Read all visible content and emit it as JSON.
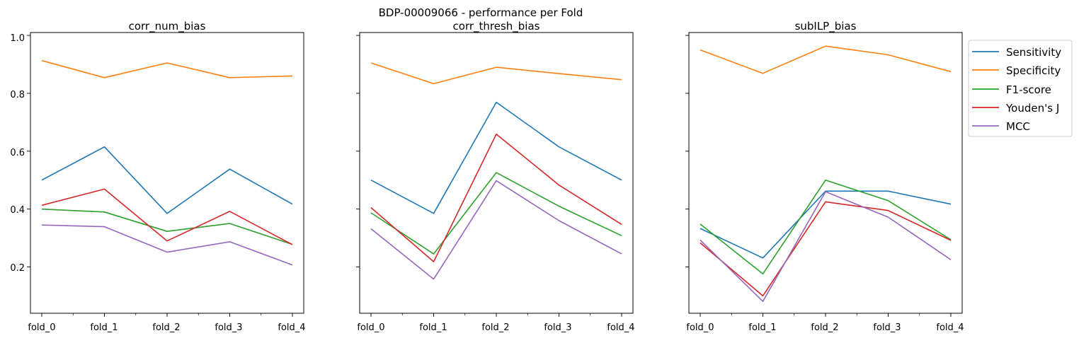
{
  "suptitle": "BDP-00009066 - performance per Fold",
  "colors": {
    "Sensitivity": "#1f77b4",
    "Specificity": "#ff7f0e",
    "F1-score": "#2ca02c",
    "Youden's J": "#d62728",
    "MCC": "#9467bd"
  },
  "legend": {
    "placement": "outside-right",
    "entries": [
      "Sensitivity",
      "Specificity",
      "F1-score",
      "Youden's J",
      "MCC"
    ]
  },
  "chart_data": [
    {
      "type": "line",
      "title": "corr_num_bias",
      "categories": [
        "fold_0",
        "fold_1",
        "fold_2",
        "fold_3",
        "fold_4"
      ],
      "ylim": [
        0.04,
        1.01
      ],
      "yticks": [
        "0.2",
        "0.4",
        "0.6",
        "0.8",
        "1.0"
      ],
      "series": [
        {
          "name": "Sensitivity",
          "values": [
            0.5,
            0.615,
            0.385,
            0.538,
            0.417
          ]
        },
        {
          "name": "Specificity",
          "values": [
            0.913,
            0.854,
            0.905,
            0.854,
            0.86
          ]
        },
        {
          "name": "F1-score",
          "values": [
            0.4,
            0.39,
            0.323,
            0.35,
            0.278
          ]
        },
        {
          "name": "Youden's J",
          "values": [
            0.413,
            0.469,
            0.29,
            0.392,
            0.277
          ]
        },
        {
          "name": "MCC",
          "values": [
            0.345,
            0.339,
            0.251,
            0.287,
            0.207
          ]
        }
      ]
    },
    {
      "type": "line",
      "title": "corr_thresh_bias",
      "categories": [
        "fold_0",
        "fold_1",
        "fold_2",
        "fold_3",
        "fold_4"
      ],
      "ylim": [
        0.04,
        1.01
      ],
      "series": [
        {
          "name": "Sensitivity",
          "values": [
            0.5,
            0.385,
            0.769,
            0.615,
            0.5
          ]
        },
        {
          "name": "Specificity",
          "values": [
            0.905,
            0.833,
            0.89,
            0.868,
            0.847
          ]
        },
        {
          "name": "F1-score",
          "values": [
            0.387,
            0.245,
            0.526,
            0.41,
            0.308
          ]
        },
        {
          "name": "Youden's J",
          "values": [
            0.405,
            0.218,
            0.659,
            0.483,
            0.347
          ]
        },
        {
          "name": "MCC",
          "values": [
            0.332,
            0.158,
            0.498,
            0.36,
            0.245
          ]
        }
      ]
    },
    {
      "type": "line",
      "title": "subILP_bias",
      "categories": [
        "fold_0",
        "fold_1",
        "fold_2",
        "fold_3",
        "fold_4"
      ],
      "ylim": [
        0.04,
        1.01
      ],
      "series": [
        {
          "name": "Sensitivity",
          "values": [
            0.333,
            0.231,
            0.462,
            0.462,
            0.417
          ]
        },
        {
          "name": "Specificity",
          "values": [
            0.95,
            0.869,
            0.963,
            0.933,
            0.875
          ]
        },
        {
          "name": "F1-score",
          "values": [
            0.348,
            0.176,
            0.5,
            0.429,
            0.294
          ]
        },
        {
          "name": "Youden's J",
          "values": [
            0.283,
            0.1,
            0.425,
            0.395,
            0.292
          ]
        },
        {
          "name": "MCC",
          "values": [
            0.293,
            0.081,
            0.46,
            0.372,
            0.225
          ]
        }
      ]
    }
  ]
}
